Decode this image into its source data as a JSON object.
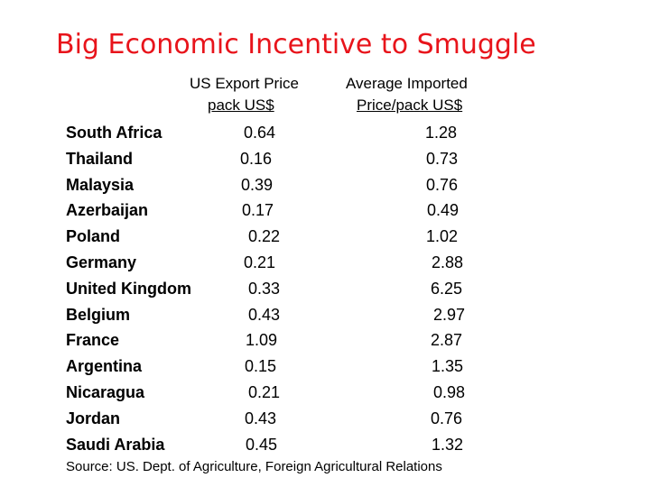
{
  "title": "Big Economic Incentive to Smuggle",
  "headers": {
    "export_line1": "US Export Price",
    "export_line2": "pack US$",
    "import_line1": "Average Imported",
    "import_line2": "Price/pack US$"
  },
  "rows": [
    {
      "country": "South Africa",
      "export": "0.64",
      "import": "1.28"
    },
    {
      "country": "Thailand",
      "export": "0.16",
      "import": "0.73"
    },
    {
      "country": "Malaysia",
      "export": "0.39",
      "import": "0.76"
    },
    {
      "country": "Azerbaijan",
      "export": "0.17",
      "import": "0.49"
    },
    {
      "country": "Poland",
      "export": "0.22",
      "import": "1.02"
    },
    {
      "country": "Germany",
      "export": "0.21",
      "import": "2.88"
    },
    {
      "country": "United Kingdom",
      "export": "0.33",
      "import": "6.25"
    },
    {
      "country": "Belgium",
      "export": "0.43",
      "import": "2.97"
    },
    {
      "country": "France",
      "export": "1.09",
      "import": "2.87"
    },
    {
      "country": "Argentina",
      "export": "0.15",
      "import": "1.35"
    },
    {
      "country": "Nicaragua",
      "export": "0.21",
      "import": "0.98"
    },
    {
      "country": "Jordan",
      "export": "0.43",
      "import": "0.76"
    },
    {
      "country": "Saudi Arabia",
      "export": "0.45",
      "import": "1.32"
    }
  ],
  "source": "Source: US. Dept. of Agriculture, Foreign Agricultural Relations",
  "colors": {
    "title": "#e8141b",
    "text": "#000000",
    "background": "#ffffff"
  }
}
